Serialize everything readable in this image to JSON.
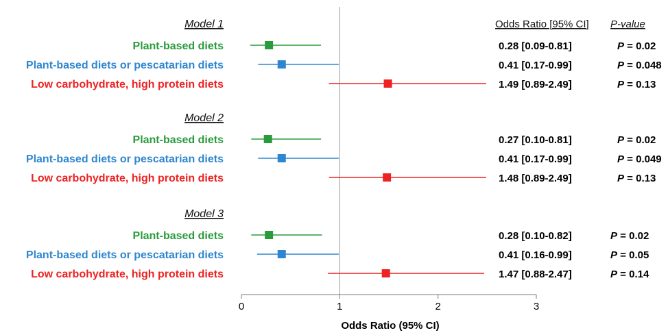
{
  "chart_data": {
    "type": "forest",
    "xlabel": "Odds Ratio (95% CI)",
    "xlim": [
      0,
      3
    ],
    "xticks": [
      0,
      1,
      2,
      3
    ],
    "reference_line": 1,
    "columns": {
      "or_header": "Odds Ratio [95% CI]",
      "p_header": "P-value"
    },
    "groups": [
      {
        "model": "Model 1",
        "rows": [
          {
            "label": "Plant-based diets",
            "color": "#2a9b3c",
            "or": 0.28,
            "lo": 0.09,
            "hi": 0.81,
            "or_text": "0.28 [0.09-0.81]",
            "p_text": "= 0.02"
          },
          {
            "label": "Plant-based diets or pescatarian diets",
            "color": "#2f86d0",
            "or": 0.41,
            "lo": 0.17,
            "hi": 0.99,
            "or_text": "0.41 [0.17-0.99]",
            "p_text": "= 0.048"
          },
          {
            "label": "Low carbohydrate, high protein diets",
            "color": "#ee2222",
            "or": 1.49,
            "lo": 0.89,
            "hi": 2.49,
            "or_text": "1.49 [0.89-2.49]",
            "p_text": "= 0.13"
          }
        ]
      },
      {
        "model": "Model 2",
        "rows": [
          {
            "label": "Plant-based diets",
            "color": "#2a9b3c",
            "or": 0.27,
            "lo": 0.1,
            "hi": 0.81,
            "or_text": "0.27 [0.10-0.81]",
            "p_text": "= 0.02"
          },
          {
            "label": "Plant-based diets or pescatarian diets",
            "color": "#2f86d0",
            "or": 0.41,
            "lo": 0.17,
            "hi": 0.99,
            "or_text": "0.41 [0.17-0.99]",
            "p_text": "= 0.049"
          },
          {
            "label": "Low carbohydrate, high protein diets",
            "color": "#ee2222",
            "or": 1.48,
            "lo": 0.89,
            "hi": 2.49,
            "or_text": "1.48 [0.89-2.49]",
            "p_text": "= 0.13"
          }
        ]
      },
      {
        "model": "Model 3",
        "rows": [
          {
            "label": "Plant-based diets",
            "color": "#2a9b3c",
            "or": 0.28,
            "lo": 0.1,
            "hi": 0.82,
            "or_text": "0.28 [0.10-0.82]",
            "p_text": "= 0.02"
          },
          {
            "label": "Plant-based diets or pescatarian diets",
            "color": "#2f86d0",
            "or": 0.41,
            "lo": 0.16,
            "hi": 0.99,
            "or_text": "0.41 [0.16-0.99]",
            "p_text": "= 0.05"
          },
          {
            "label": "Low carbohydrate, high protein diets",
            "color": "#ee2222",
            "or": 1.47,
            "lo": 0.88,
            "hi": 2.47,
            "or_text": "1.47 [0.88-2.47]",
            "p_text": "= 0.14"
          }
        ]
      }
    ],
    "p_symbol": "P"
  }
}
